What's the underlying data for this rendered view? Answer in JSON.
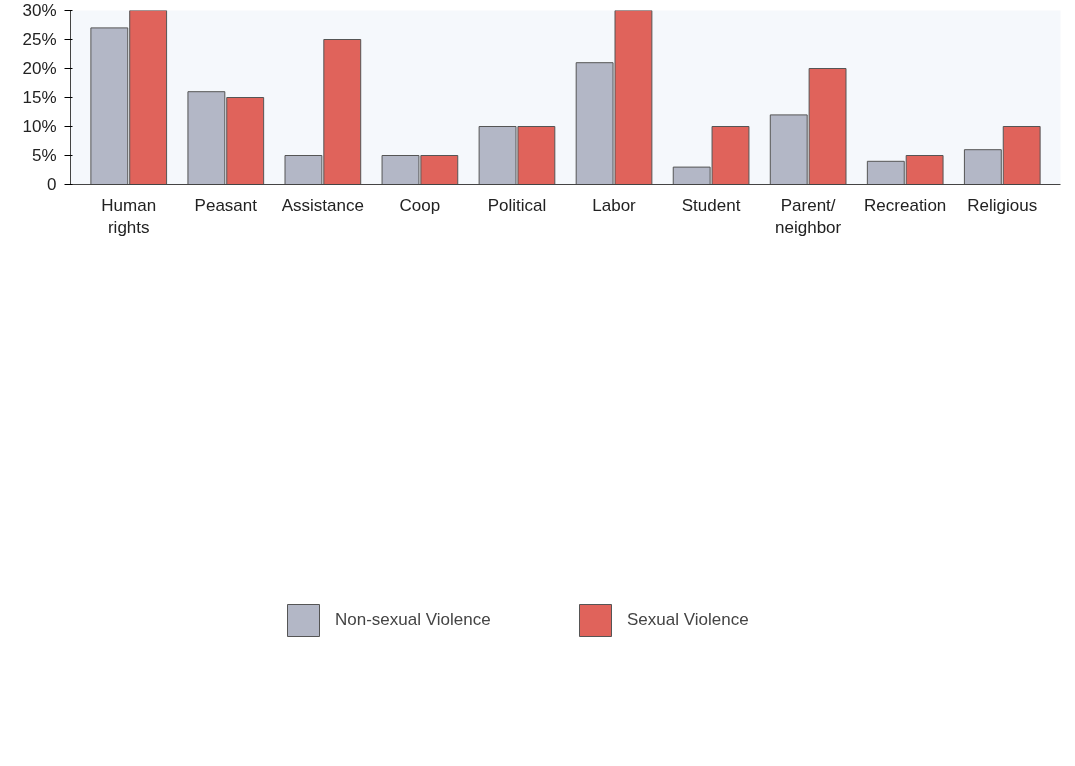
{
  "chart_data": {
    "type": "bar",
    "categories": [
      "Human rights",
      "Peasant",
      "Assistance",
      "Coop",
      "Political",
      "Labor",
      "Student",
      "Parent/ neighbor",
      "Recreation",
      "Religious"
    ],
    "series": [
      {
        "name": "Non-sexual Violence",
        "color": "#b3b7c6",
        "values": [
          27,
          16,
          5,
          5,
          10,
          21,
          3,
          12,
          4,
          6
        ]
      },
      {
        "name": "Sexual Violence",
        "color": "#e0635b",
        "values": [
          30,
          15,
          25,
          5,
          10,
          30,
          10,
          20,
          5,
          10
        ]
      }
    ],
    "ylim": [
      0,
      30
    ],
    "yticks": [
      0,
      {
        "value": 5,
        "label": "5%"
      },
      {
        "value": 10,
        "label": "10%"
      },
      {
        "value": 15,
        "label": "15%"
      },
      {
        "value": 20,
        "label": "20%"
      },
      {
        "value": 25,
        "label": "25%"
      },
      {
        "value": 30,
        "label": "30%"
      }
    ],
    "grid": false,
    "legend": "bottom"
  }
}
